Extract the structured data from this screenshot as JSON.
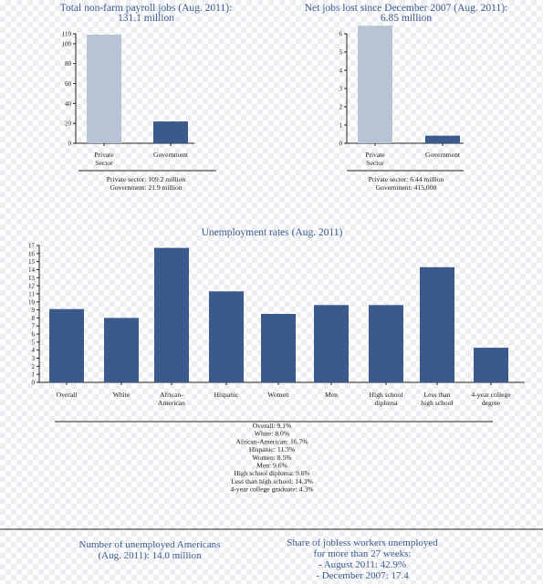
{
  "chart_data": [
    {
      "type": "bar",
      "title": "Total non-farm payroll jobs (Aug. 2011):",
      "subtitle": "131.1 million",
      "categories": [
        "Private|Sector",
        "Government"
      ],
      "values": [
        109.2,
        21.9
      ],
      "ylim": [
        0,
        110
      ],
      "yticks": [
        0,
        20,
        40,
        60,
        80,
        100,
        110
      ],
      "colors": [
        "#b7c4d6",
        "#3a5a8c"
      ],
      "notes": [
        "Private sector: 109.2 million",
        "Government: 21.9 million"
      ]
    },
    {
      "type": "bar",
      "title": "Net jobs lost since December 2007 (Aug. 2011):",
      "subtitle": "6.85 million",
      "categories": [
        "Private|Sector",
        "Government"
      ],
      "values": [
        6.44,
        0.415
      ],
      "ylim": [
        0,
        6
      ],
      "yticks": [
        0,
        1,
        2,
        3,
        4,
        5,
        6
      ],
      "colors": [
        "#b7c4d6",
        "#3a5a8c"
      ],
      "notes": [
        "Private sector: 6.44 million",
        "Government: 415,000"
      ]
    },
    {
      "type": "bar",
      "title": "Unemployment rates (Aug. 2011)",
      "categories": [
        "Overall",
        "White",
        "African-|American",
        "Hispanic",
        "Women",
        "Men",
        "High school|diploma",
        "Less than|high school",
        "4-year college|degree"
      ],
      "values": [
        9.1,
        8.0,
        16.7,
        11.3,
        8.5,
        9.6,
        9.6,
        14.3,
        4.3
      ],
      "ylim": [
        0,
        17
      ],
      "yticks": [
        0,
        1,
        2,
        3,
        4,
        5,
        6,
        7,
        8,
        9,
        10,
        11,
        12,
        13,
        14,
        15,
        16,
        17
      ],
      "colors": [
        "#3a5a8c"
      ],
      "notes": [
        "Overall: 9.1%",
        "White: 8.0%",
        "African-American: 16.7%",
        "Hispanic: 11.3%",
        "Women: 8.5%",
        "Men: 9.6%",
        "High school diploma: 9.6%",
        "Less than high school: 14.3%",
        "4-year college graduate: 4.3%"
      ]
    }
  ],
  "bottom": {
    "left": [
      "Number of unemployed Americans",
      "(Aug. 2011): 14.0 million"
    ],
    "right": [
      "Share of jobless workers unemployed",
      "for more than 27 weeks:",
      "- August 2011: 42.9%",
      "- December 2007: 17.4"
    ]
  }
}
